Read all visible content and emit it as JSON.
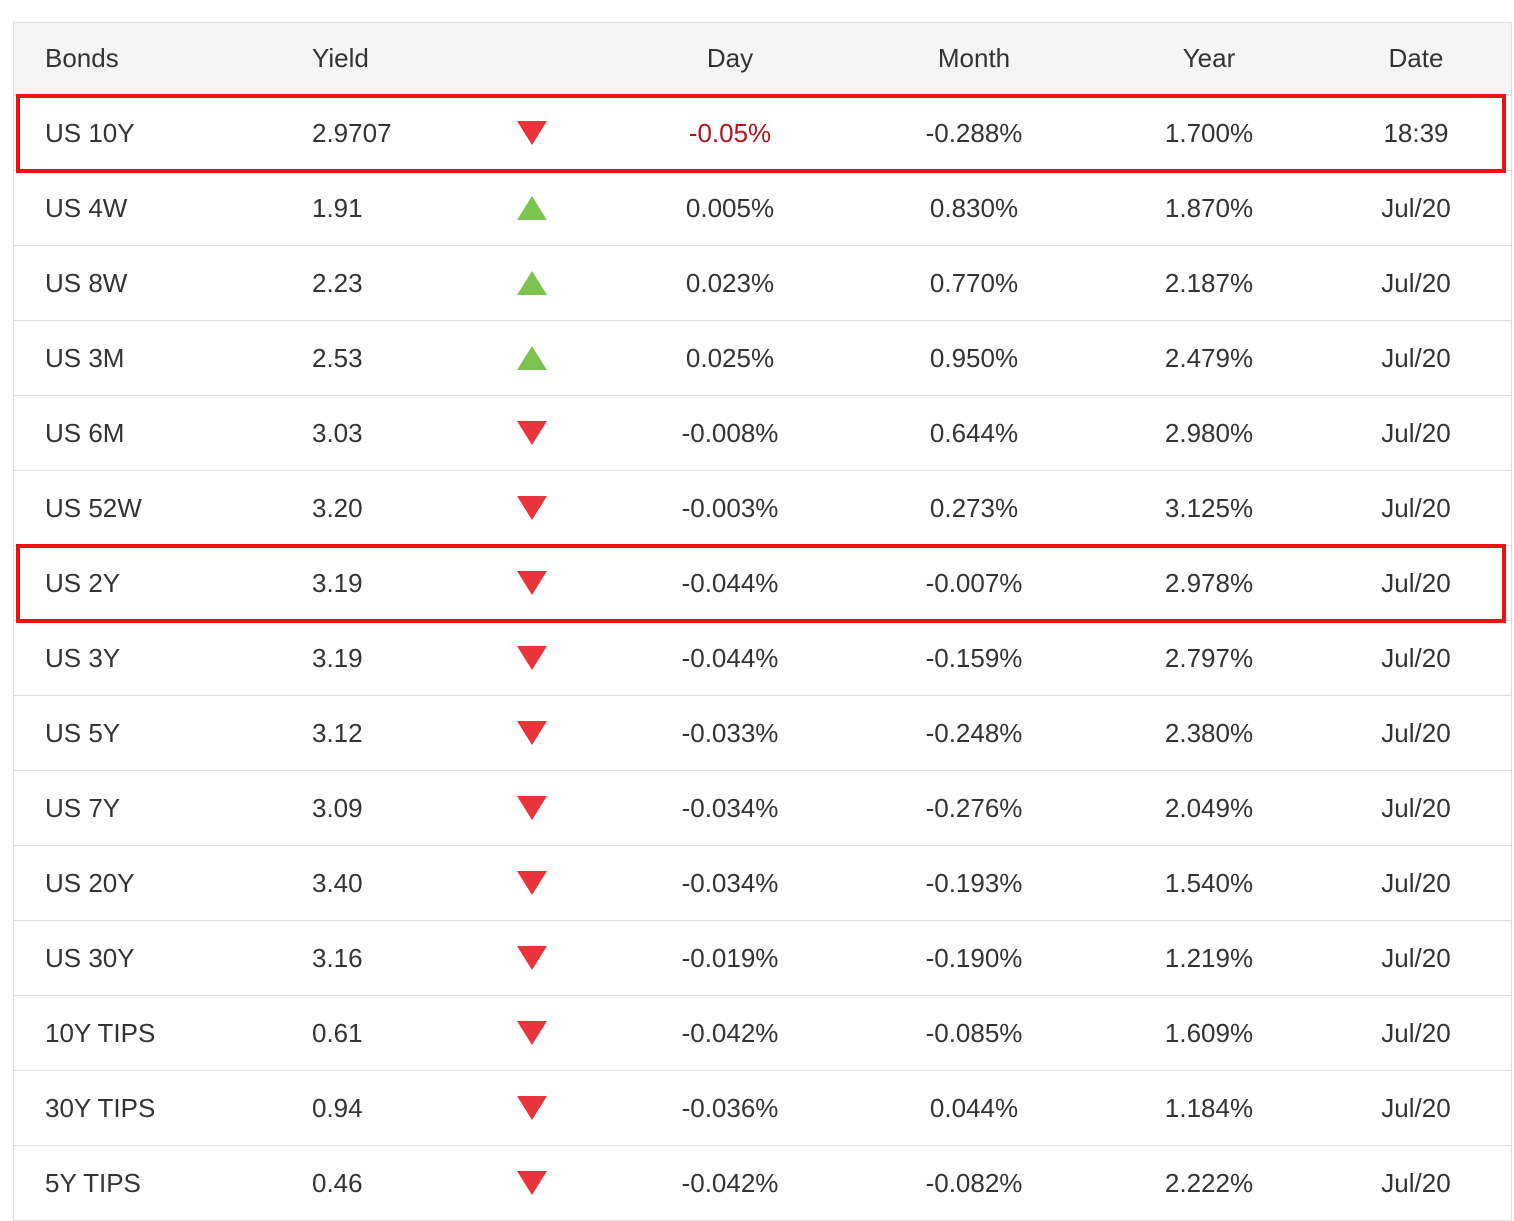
{
  "table": {
    "headers": {
      "bonds": "Bonds",
      "yield": "Yield",
      "day": "Day",
      "month": "Month",
      "year": "Year",
      "date": "Date"
    },
    "rows": [
      {
        "name": "US 10Y",
        "yield": "2.9707",
        "direction": "down",
        "day": "-0.05%",
        "month": "-0.288%",
        "year": "1.700%",
        "date": "18:39",
        "highlighted": true,
        "day_emphasis": true
      },
      {
        "name": "US 4W",
        "yield": "1.91",
        "direction": "up",
        "day": "0.005%",
        "month": "0.830%",
        "year": "1.870%",
        "date": "Jul/20"
      },
      {
        "name": "US 8W",
        "yield": "2.23",
        "direction": "up",
        "day": "0.023%",
        "month": "0.770%",
        "year": "2.187%",
        "date": "Jul/20"
      },
      {
        "name": "US 3M",
        "yield": "2.53",
        "direction": "up",
        "day": "0.025%",
        "month": "0.950%",
        "year": "2.479%",
        "date": "Jul/20"
      },
      {
        "name": "US 6M",
        "yield": "3.03",
        "direction": "down",
        "day": "-0.008%",
        "month": "0.644%",
        "year": "2.980%",
        "date": "Jul/20"
      },
      {
        "name": "US 52W",
        "yield": "3.20",
        "direction": "down",
        "day": "-0.003%",
        "month": "0.273%",
        "year": "3.125%",
        "date": "Jul/20"
      },
      {
        "name": "US 2Y",
        "yield": "3.19",
        "direction": "down",
        "day": "-0.044%",
        "month": "-0.007%",
        "year": "2.978%",
        "date": "Jul/20",
        "highlighted": true
      },
      {
        "name": "US 3Y",
        "yield": "3.19",
        "direction": "down",
        "day": "-0.044%",
        "month": "-0.159%",
        "year": "2.797%",
        "date": "Jul/20"
      },
      {
        "name": "US 5Y",
        "yield": "3.12",
        "direction": "down",
        "day": "-0.033%",
        "month": "-0.248%",
        "year": "2.380%",
        "date": "Jul/20"
      },
      {
        "name": "US 7Y",
        "yield": "3.09",
        "direction": "down",
        "day": "-0.034%",
        "month": "-0.276%",
        "year": "2.049%",
        "date": "Jul/20"
      },
      {
        "name": "US 20Y",
        "yield": "3.40",
        "direction": "down",
        "day": "-0.034%",
        "month": "-0.193%",
        "year": "1.540%",
        "date": "Jul/20"
      },
      {
        "name": "US 30Y",
        "yield": "3.16",
        "direction": "down",
        "day": "-0.019%",
        "month": "-0.190%",
        "year": "1.219%",
        "date": "Jul/20"
      },
      {
        "name": "10Y TIPS",
        "yield": "0.61",
        "direction": "down",
        "day": "-0.042%",
        "month": "-0.085%",
        "year": "1.609%",
        "date": "Jul/20"
      },
      {
        "name": "30Y TIPS",
        "yield": "0.94",
        "direction": "down",
        "day": "-0.036%",
        "month": "0.044%",
        "year": "1.184%",
        "date": "Jul/20"
      },
      {
        "name": "5Y TIPS",
        "yield": "0.46",
        "direction": "down",
        "day": "-0.042%",
        "month": "-0.082%",
        "year": "2.222%",
        "date": "Jul/20"
      }
    ]
  },
  "colors": {
    "up_arrow": "#7cc34f",
    "down_arrow": "#e8343a",
    "highlight_border": "#ee1111",
    "day_emphasis_text": "#b3141b",
    "header_bg": "#f5f5f5"
  },
  "icons": {
    "up": "triangle-up-icon",
    "down": "triangle-down-icon"
  }
}
